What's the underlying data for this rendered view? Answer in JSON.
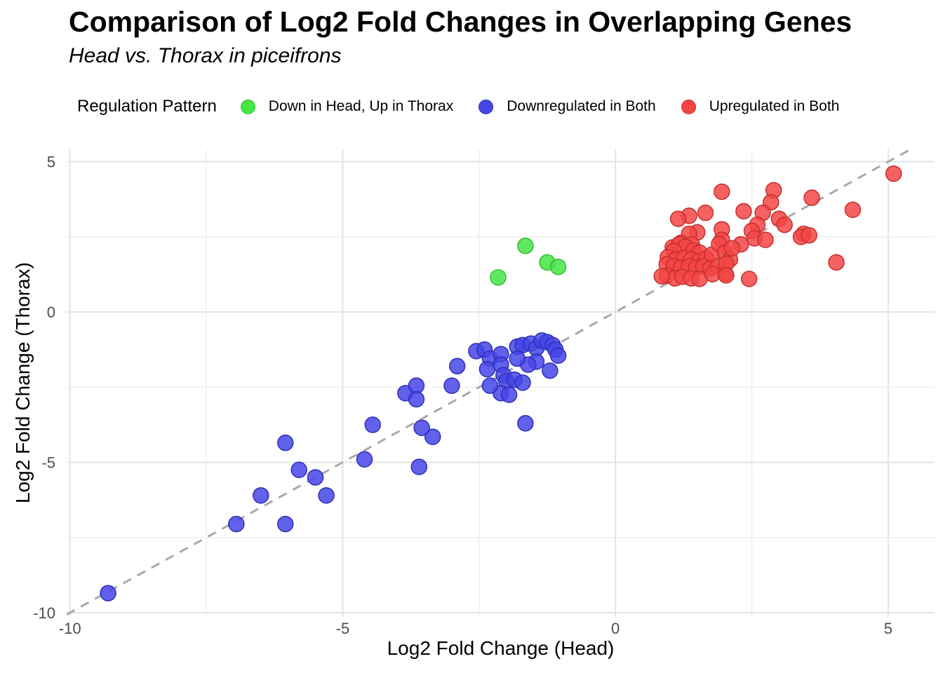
{
  "chart_data": {
    "type": "scatter",
    "title": "Comparison of Log2 Fold Changes in Overlapping Genes",
    "subtitle": "Head vs. Thorax in piceifrons",
    "legend_title": "Regulation Pattern",
    "legend_position": "top",
    "xlabel": "Log2 Fold Change (Head)",
    "ylabel": "Log2 Fold Change (Thorax)",
    "xlim": [
      -10.06,
      5.85
    ],
    "ylim": [
      -10.14,
      5.41
    ],
    "ticks_x": [
      -10,
      -5,
      0,
      5
    ],
    "ticks_y": [
      -10,
      -5,
      0,
      5
    ],
    "minor_ticks_x": [
      -7.5,
      -2.5,
      2.5
    ],
    "minor_ticks_y": [
      -7.5,
      -2.5,
      2.5
    ],
    "grid": true,
    "tick_color": "#4d4d4d",
    "grid_major_color": "#E3E3E3",
    "grid_minor_color": "#EDEDED",
    "identity_line": {
      "equation": "y = x",
      "style": "dashed",
      "color": "#A9A9A9"
    },
    "point_radius": 11,
    "series": [
      {
        "name": "Down in Head, Up in Thorax",
        "color": "#45E545",
        "stroke": "#2FBF2F",
        "points": [
          [
            -2.15,
            1.15
          ],
          [
            -1.65,
            2.2
          ],
          [
            -1.25,
            1.65
          ],
          [
            -1.05,
            1.5
          ]
        ]
      },
      {
        "name": "Downregulated in Both",
        "color": "#4545E8",
        "stroke": "#2F2FB8",
        "points": [
          [
            -9.3,
            -9.35
          ],
          [
            -6.95,
            -7.05
          ],
          [
            -6.05,
            -7.05
          ],
          [
            -6.5,
            -6.1
          ],
          [
            -5.3,
            -6.1
          ],
          [
            -5.5,
            -5.5
          ],
          [
            -5.8,
            -5.25
          ],
          [
            -3.6,
            -5.15
          ],
          [
            -4.6,
            -4.9
          ],
          [
            -6.05,
            -4.35
          ],
          [
            -3.35,
            -4.15
          ],
          [
            -4.45,
            -3.75
          ],
          [
            -3.55,
            -3.85
          ],
          [
            -3.85,
            -2.7
          ],
          [
            -3.65,
            -2.45
          ],
          [
            -3.65,
            -2.9
          ],
          [
            -2.9,
            -1.8
          ],
          [
            -3.0,
            -2.45
          ],
          [
            -2.55,
            -1.3
          ],
          [
            -2.4,
            -1.25
          ],
          [
            -2.3,
            -1.55
          ],
          [
            -2.35,
            -1.9
          ],
          [
            -2.1,
            -1.4
          ],
          [
            -2.1,
            -1.75
          ],
          [
            -2.05,
            -2.1
          ],
          [
            -2.0,
            -2.3
          ],
          [
            -2.1,
            -2.7
          ],
          [
            -1.95,
            -2.75
          ],
          [
            -2.3,
            -2.45
          ],
          [
            -1.8,
            -1.15
          ],
          [
            -1.7,
            -1.1
          ],
          [
            -1.55,
            -1.05
          ],
          [
            -1.45,
            -1.2
          ],
          [
            -1.35,
            -0.95
          ],
          [
            -1.25,
            -1.0
          ],
          [
            -1.15,
            -1.1
          ],
          [
            -1.1,
            -1.25
          ],
          [
            -1.05,
            -1.45
          ],
          [
            -1.45,
            -1.65
          ],
          [
            -1.6,
            -1.75
          ],
          [
            -1.8,
            -1.55
          ],
          [
            -1.85,
            -2.25
          ],
          [
            -1.7,
            -2.35
          ],
          [
            -1.2,
            -1.95
          ],
          [
            -1.65,
            -3.7
          ]
        ]
      },
      {
        "name": "Upregulated in Both",
        "color": "#F44545",
        "stroke": "#C52F2F",
        "points": [
          [
            5.1,
            4.6
          ],
          [
            1.95,
            4.0
          ],
          [
            2.9,
            4.05
          ],
          [
            2.85,
            3.65
          ],
          [
            3.6,
            3.8
          ],
          [
            4.35,
            3.4
          ],
          [
            2.7,
            3.3
          ],
          [
            2.35,
            3.35
          ],
          [
            1.65,
            3.3
          ],
          [
            1.35,
            3.2
          ],
          [
            1.15,
            3.1
          ],
          [
            3.0,
            3.1
          ],
          [
            3.1,
            2.9
          ],
          [
            2.6,
            2.9
          ],
          [
            2.5,
            2.7
          ],
          [
            1.95,
            2.75
          ],
          [
            3.45,
            2.6
          ],
          [
            3.4,
            2.5
          ],
          [
            3.55,
            2.55
          ],
          [
            1.5,
            2.65
          ],
          [
            1.35,
            2.6
          ],
          [
            1.2,
            2.3
          ],
          [
            1.05,
            2.15
          ],
          [
            1.95,
            2.4
          ],
          [
            2.3,
            2.25
          ],
          [
            2.55,
            2.45
          ],
          [
            2.75,
            2.4
          ],
          [
            1.4,
            2.25
          ],
          [
            4.05,
            1.65
          ],
          [
            1.17,
            2.26
          ],
          [
            1.28,
            2.17
          ],
          [
            1.07,
            2.03
          ],
          [
            1.43,
            2.05
          ],
          [
            1.54,
            1.98
          ],
          [
            0.96,
            1.82
          ],
          [
            1.11,
            1.75
          ],
          [
            1.26,
            1.79
          ],
          [
            1.39,
            1.75
          ],
          [
            1.54,
            1.7
          ],
          [
            1.67,
            1.79
          ],
          [
            1.77,
            1.91
          ],
          [
            1.9,
            2.26
          ],
          [
            2.01,
            1.98
          ],
          [
            2.1,
            1.75
          ],
          [
            0.94,
            1.59
          ],
          [
            1.07,
            1.52
          ],
          [
            1.2,
            1.47
          ],
          [
            1.35,
            1.52
          ],
          [
            1.48,
            1.47
          ],
          [
            1.61,
            1.52
          ],
          [
            1.74,
            1.45
          ],
          [
            1.88,
            1.52
          ],
          [
            0.94,
            1.21
          ],
          [
            1.09,
            1.12
          ],
          [
            1.23,
            1.17
          ],
          [
            1.39,
            1.12
          ],
          [
            1.54,
            1.1
          ],
          [
            2.01,
            1.28
          ],
          [
            2.14,
            2.12
          ],
          [
            1.78,
            1.26
          ],
          [
            2.03,
            1.61
          ],
          [
            2.03,
            1.22
          ],
          [
            2.45,
            1.1
          ],
          [
            0.85,
            1.19
          ]
        ]
      }
    ]
  }
}
